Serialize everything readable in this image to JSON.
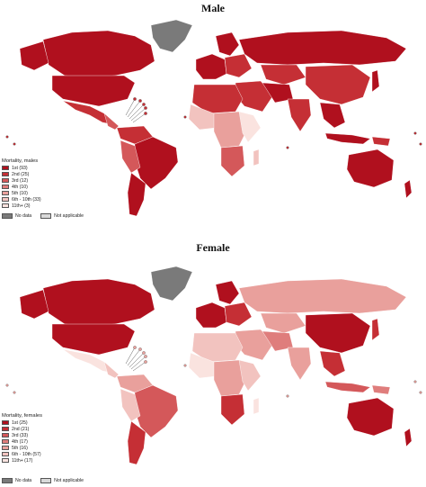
{
  "panels": [
    {
      "title": "Male",
      "legend_title": "Mortality, males",
      "legend": [
        "1st (93)",
        "2nd (25)",
        "3rd (12)",
        "4th (10)",
        "5th (10)",
        "6th - 10th (33)",
        "11th+ (3)"
      ],
      "no_data": "No data",
      "not_applicable": "Not applicable"
    },
    {
      "title": "Female",
      "legend_title": "Mortality, females",
      "legend": [
        "1st (25)",
        "2nd (21)",
        "3rd (33)",
        "4th (17)",
        "5th (16)",
        "6th - 10th (57)",
        "11th+ (17)"
      ],
      "no_data": "No data",
      "not_applicable": "Not applicable"
    }
  ],
  "colors": {
    "rank1": "#b0101e",
    "rank2": "#c52f35",
    "rank3": "#d4585a",
    "rank4": "#df7d7c",
    "rank5": "#e9a09c",
    "rank6": "#f2c3bf",
    "rank11": "#fae3df",
    "no_data": "#7a7a7a",
    "not_applicable": "#d9d9d9"
  }
}
